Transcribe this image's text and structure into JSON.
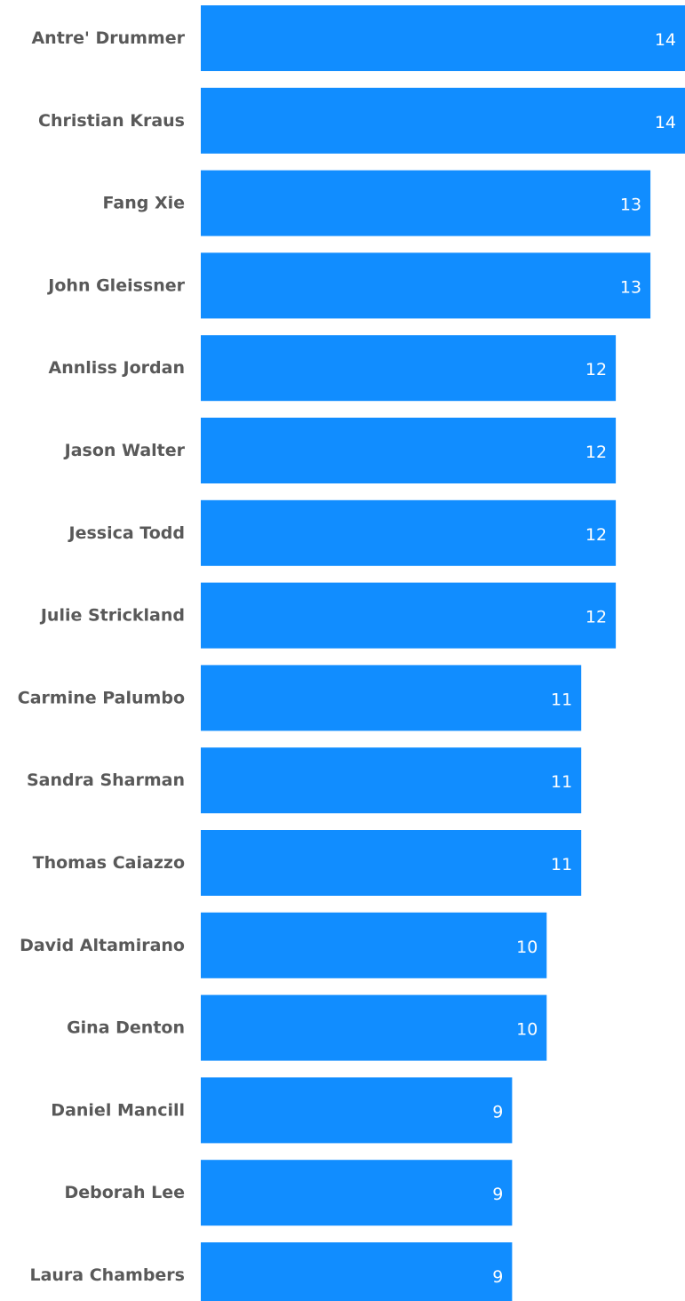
{
  "chart_data": {
    "type": "bar",
    "orientation": "horizontal",
    "categories": [
      "Antre' Drummer",
      "Christian Kraus",
      "Fang Xie",
      "John Gleissner",
      "Annliss Jordan",
      "Jason Walter",
      "Jessica Todd",
      "Julie Strickland",
      "Carmine Palumbo",
      "Sandra Sharman",
      "Thomas Caiazzo",
      "David Altamirano",
      "Gina Denton",
      "Daniel Mancill",
      "Deborah Lee",
      "Laura Chambers"
    ],
    "values": [
      14,
      14,
      13,
      13,
      12,
      12,
      12,
      12,
      11,
      11,
      11,
      10,
      10,
      9,
      9,
      9
    ],
    "title": "",
    "xlabel": "",
    "ylabel": "",
    "xlim": [
      0,
      14
    ],
    "grid": false,
    "data_labels": true,
    "bar_color": "#118dff",
    "category_label_color": "#595959",
    "value_label_color": "#ffffff"
  }
}
